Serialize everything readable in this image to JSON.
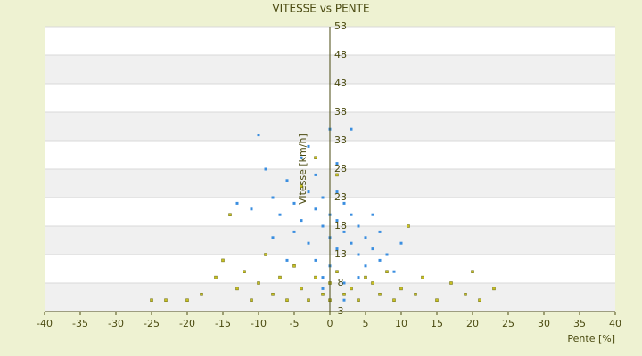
{
  "chart_data": {
    "type": "scatter",
    "title": "VITESSE vs PENTE",
    "x_label": "Pente [%]",
    "y_label": "Vitesse [km/h]",
    "xlim": [
      -40,
      40
    ],
    "xticks": [
      -40,
      -35,
      -30,
      -25,
      -20,
      -15,
      -10,
      -5,
      0,
      5,
      10,
      15,
      20,
      25,
      30,
      35,
      40
    ],
    "ylim": [
      3,
      53
    ],
    "yticks": [
      3,
      8,
      13,
      18,
      23,
      28,
      33,
      38,
      43,
      48,
      53
    ],
    "grid": true,
    "series": [
      {
        "color": "#3a8ee0",
        "x": [
          -10,
          -9,
          -8,
          -7,
          -6,
          -5,
          -5,
          -4,
          -4,
          -3,
          -3,
          -2,
          -2,
          -2,
          -1,
          -1,
          -1,
          0,
          0,
          0,
          0,
          1,
          1,
          1,
          2,
          2,
          2,
          3,
          3,
          3,
          4,
          4,
          5,
          5,
          6,
          6,
          7,
          7,
          8,
          9,
          10,
          -8,
          -6,
          -11,
          -13,
          -3,
          1,
          -1,
          4,
          2
        ],
        "values": [
          34,
          28,
          23,
          20,
          26,
          22,
          17,
          30,
          19,
          24,
          15,
          21,
          27,
          12,
          18,
          23,
          9,
          20,
          16,
          35,
          11,
          19,
          24,
          14,
          17,
          22,
          8,
          15,
          20,
          35,
          13,
          18,
          16,
          11,
          14,
          20,
          12,
          17,
          13,
          10,
          15,
          16,
          12,
          21,
          22,
          32,
          29,
          7,
          9,
          5
        ]
      },
      {
        "color": "#c8c020",
        "x": [
          -25,
          -23,
          -20,
          -18,
          -16,
          -15,
          -14,
          -13,
          -12,
          -11,
          -10,
          -9,
          -8,
          -7,
          -6,
          -5,
          -4,
          -3,
          -2,
          -1,
          0,
          0,
          1,
          2,
          3,
          4,
          5,
          6,
          7,
          8,
          9,
          10,
          12,
          13,
          15,
          17,
          19,
          20,
          21,
          23,
          -2,
          -4,
          1,
          11
        ],
        "values": [
          5,
          5,
          5,
          6,
          9,
          12,
          20,
          7,
          10,
          5,
          8,
          13,
          6,
          9,
          5,
          11,
          7,
          5,
          9,
          6,
          8,
          5,
          10,
          6,
          7,
          5,
          9,
          8,
          6,
          10,
          5,
          7,
          6,
          9,
          5,
          8,
          6,
          10,
          5,
          7,
          30,
          25,
          27,
          18
        ]
      }
    ]
  }
}
